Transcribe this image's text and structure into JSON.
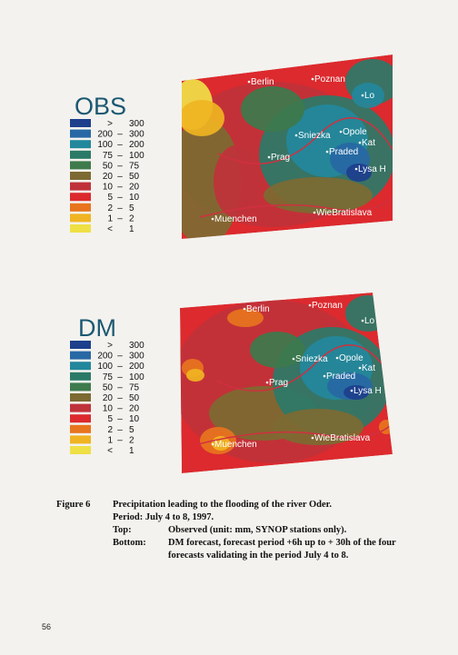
{
  "panels": [
    {
      "title": "OBS",
      "legend": [
        {
          "color": "#1d3f8c",
          "text": [
            ">",
            "300"
          ]
        },
        {
          "color": "#2868a4",
          "text": [
            "200",
            "–",
            "300"
          ]
        },
        {
          "color": "#23889c",
          "text": [
            "100",
            "–",
            "200"
          ]
        },
        {
          "color": "#2b7a68",
          "text": [
            "75",
            "–",
            "100"
          ]
        },
        {
          "color": "#3d7a4c",
          "text": [
            "50",
            "–",
            "75"
          ]
        },
        {
          "color": "#7d6a32",
          "text": [
            "20",
            "–",
            "50"
          ]
        },
        {
          "color": "#c0323a",
          "text": [
            "10",
            "–",
            "20"
          ]
        },
        {
          "color": "#dc2a2e",
          "text": [
            "5",
            "–",
            "10"
          ]
        },
        {
          "color": "#e8741e",
          "text": [
            "2",
            "–",
            "5"
          ]
        },
        {
          "color": "#f0b422",
          "text": [
            "1",
            "–",
            "2"
          ]
        },
        {
          "color": "#efe046",
          "text": [
            "<",
            "1"
          ]
        }
      ],
      "cities": [
        "Berlin",
        "Poznan",
        "Lo",
        "Sniezka",
        "Opole",
        "Kat",
        "Praded",
        "Lysa H",
        "Prag",
        "Muenchen",
        "WieBratislava"
      ]
    },
    {
      "title": "DM",
      "legend": [
        {
          "color": "#1d3f8c",
          "text": [
            ">",
            "300"
          ]
        },
        {
          "color": "#2868a4",
          "text": [
            "200",
            "–",
            "300"
          ]
        },
        {
          "color": "#23889c",
          "text": [
            "100",
            "–",
            "200"
          ]
        },
        {
          "color": "#2b7a68",
          "text": [
            "75",
            "–",
            "100"
          ]
        },
        {
          "color": "#3d7a4c",
          "text": [
            "50",
            "–",
            "75"
          ]
        },
        {
          "color": "#7d6a32",
          "text": [
            "20",
            "–",
            "50"
          ]
        },
        {
          "color": "#c0323a",
          "text": [
            "10",
            "–",
            "20"
          ]
        },
        {
          "color": "#dc2a2e",
          "text": [
            "5",
            "–",
            "10"
          ]
        },
        {
          "color": "#e8741e",
          "text": [
            "2",
            "–",
            "5"
          ]
        },
        {
          "color": "#f0b422",
          "text": [
            "1",
            "–",
            "2"
          ]
        },
        {
          "color": "#efe046",
          "text": [
            "<",
            "1"
          ]
        }
      ],
      "cities": [
        "Berlin",
        "Poznan",
        "Lo",
        "Sniezka",
        "Opole",
        "Kat",
        "Praded",
        "Lysa H",
        "Prag",
        "Muenchen",
        "WieBratislava"
      ]
    }
  ],
  "caption": {
    "figure": "Figure 6",
    "title": "Precipitation leading to the flooding of the river Oder.",
    "period": "Period: July 4 to 8, 1997.",
    "rows": [
      {
        "label": "Top:",
        "text": [
          "Observed (unit: mm, SYNOP stations only)."
        ]
      },
      {
        "label": "Bottom:",
        "text": [
          "DM forecast, forecast period +6h up to + 30h of the four",
          "forecasts validating in the period July 4 to 8."
        ]
      }
    ]
  },
  "page_number": "56"
}
